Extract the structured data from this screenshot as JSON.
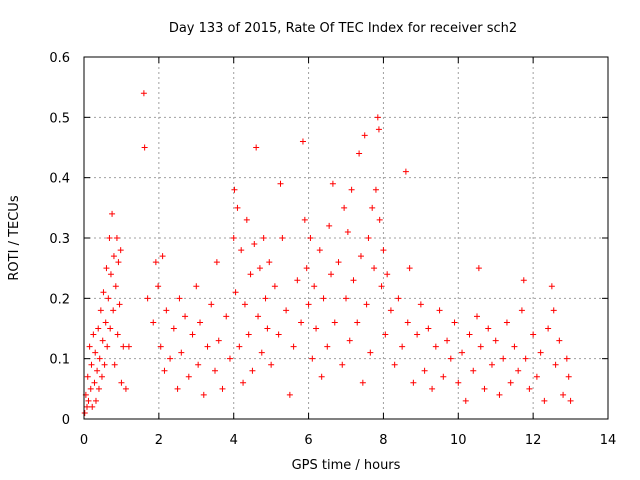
{
  "chart_data": {
    "type": "scatter",
    "title": "Day 133 of 2015, Rate Of TEC Index for receiver sch2",
    "xlabel": "GPS time / hours",
    "ylabel": "ROTI / TECUs",
    "xlim": [
      0,
      14
    ],
    "ylim": [
      0,
      0.6
    ],
    "xticks": [
      0,
      2,
      4,
      6,
      8,
      10,
      12,
      14
    ],
    "yticks": [
      0,
      0.1,
      0.2,
      0.3,
      0.4,
      0.5,
      0.6
    ],
    "xtick_labels": [
      "0",
      "2",
      "4",
      "6",
      "8",
      "10",
      "12",
      "14"
    ],
    "ytick_labels": [
      "0",
      "0.1",
      "0.2",
      "0.3",
      "0.4",
      "0.5",
      "0.6"
    ],
    "grid": true,
    "marker": "plus",
    "marker_color": "#ff0000",
    "points": [
      [
        0.02,
        0.01
      ],
      [
        0.05,
        0.04
      ],
      [
        0.08,
        0.02
      ],
      [
        0.1,
        0.07
      ],
      [
        0.12,
        0.03
      ],
      [
        0.15,
        0.12
      ],
      [
        0.18,
        0.05
      ],
      [
        0.2,
        0.09
      ],
      [
        0.22,
        0.02
      ],
      [
        0.25,
        0.14
      ],
      [
        0.28,
        0.06
      ],
      [
        0.3,
        0.11
      ],
      [
        0.32,
        0.03
      ],
      [
        0.35,
        0.08
      ],
      [
        0.38,
        0.15
      ],
      [
        0.4,
        0.05
      ],
      [
        0.42,
        0.1
      ],
      [
        0.45,
        0.18
      ],
      [
        0.48,
        0.07
      ],
      [
        0.5,
        0.13
      ],
      [
        0.52,
        0.21
      ],
      [
        0.55,
        0.09
      ],
      [
        0.58,
        0.16
      ],
      [
        0.6,
        0.25
      ],
      [
        0.62,
        0.12
      ],
      [
        0.65,
        0.2
      ],
      [
        0.68,
        0.3
      ],
      [
        0.7,
        0.15
      ],
      [
        0.72,
        0.24
      ],
      [
        0.75,
        0.34
      ],
      [
        0.78,
        0.18
      ],
      [
        0.8,
        0.27
      ],
      [
        0.82,
        0.09
      ],
      [
        0.85,
        0.22
      ],
      [
        0.88,
        0.3
      ],
      [
        0.9,
        0.14
      ],
      [
        0.92,
        0.26
      ],
      [
        0.95,
        0.19
      ],
      [
        0.98,
        0.28
      ],
      [
        1.0,
        0.06
      ],
      [
        1.05,
        0.12
      ],
      [
        1.12,
        0.05
      ],
      [
        1.2,
        0.12
      ],
      [
        1.6,
        0.54
      ],
      [
        1.62,
        0.45
      ],
      [
        1.7,
        0.2
      ],
      [
        1.85,
        0.16
      ],
      [
        1.92,
        0.26
      ],
      [
        1.98,
        0.22
      ],
      [
        2.05,
        0.12
      ],
      [
        2.1,
        0.27
      ],
      [
        2.15,
        0.08
      ],
      [
        2.2,
        0.18
      ],
      [
        2.3,
        0.1
      ],
      [
        2.4,
        0.15
      ],
      [
        2.5,
        0.05
      ],
      [
        2.55,
        0.2
      ],
      [
        2.6,
        0.11
      ],
      [
        2.7,
        0.17
      ],
      [
        2.8,
        0.07
      ],
      [
        2.9,
        0.14
      ],
      [
        3.0,
        0.22
      ],
      [
        3.05,
        0.09
      ],
      [
        3.1,
        0.16
      ],
      [
        3.2,
        0.04
      ],
      [
        3.3,
        0.12
      ],
      [
        3.4,
        0.19
      ],
      [
        3.5,
        0.08
      ],
      [
        3.55,
        0.26
      ],
      [
        3.6,
        0.13
      ],
      [
        3.7,
        0.05
      ],
      [
        3.8,
        0.17
      ],
      [
        3.9,
        0.1
      ],
      [
        4.0,
        0.3
      ],
      [
        4.02,
        0.38
      ],
      [
        4.05,
        0.21
      ],
      [
        4.1,
        0.35
      ],
      [
        4.15,
        0.12
      ],
      [
        4.2,
        0.28
      ],
      [
        4.25,
        0.06
      ],
      [
        4.3,
        0.19
      ],
      [
        4.35,
        0.33
      ],
      [
        4.4,
        0.14
      ],
      [
        4.45,
        0.24
      ],
      [
        4.5,
        0.08
      ],
      [
        4.55,
        0.29
      ],
      [
        4.6,
        0.45
      ],
      [
        4.65,
        0.17
      ],
      [
        4.7,
        0.25
      ],
      [
        4.75,
        0.11
      ],
      [
        4.8,
        0.3
      ],
      [
        4.85,
        0.2
      ],
      [
        4.9,
        0.15
      ],
      [
        4.95,
        0.26
      ],
      [
        5.0,
        0.09
      ],
      [
        5.1,
        0.22
      ],
      [
        5.2,
        0.14
      ],
      [
        5.25,
        0.39
      ],
      [
        5.3,
        0.3
      ],
      [
        5.4,
        0.18
      ],
      [
        5.5,
        0.04
      ],
      [
        5.6,
        0.12
      ],
      [
        5.7,
        0.23
      ],
      [
        5.8,
        0.16
      ],
      [
        5.85,
        0.46
      ],
      [
        5.9,
        0.33
      ],
      [
        5.95,
        0.25
      ],
      [
        6.0,
        0.19
      ],
      [
        6.05,
        0.3
      ],
      [
        6.1,
        0.1
      ],
      [
        6.15,
        0.22
      ],
      [
        6.2,
        0.15
      ],
      [
        6.3,
        0.28
      ],
      [
        6.35,
        0.07
      ],
      [
        6.4,
        0.2
      ],
      [
        6.5,
        0.12
      ],
      [
        6.55,
        0.32
      ],
      [
        6.6,
        0.24
      ],
      [
        6.65,
        0.39
      ],
      [
        6.7,
        0.16
      ],
      [
        6.8,
        0.26
      ],
      [
        6.9,
        0.09
      ],
      [
        6.95,
        0.35
      ],
      [
        7.0,
        0.2
      ],
      [
        7.05,
        0.31
      ],
      [
        7.1,
        0.13
      ],
      [
        7.15,
        0.38
      ],
      [
        7.2,
        0.23
      ],
      [
        7.3,
        0.16
      ],
      [
        7.35,
        0.44
      ],
      [
        7.4,
        0.27
      ],
      [
        7.45,
        0.06
      ],
      [
        7.5,
        0.47
      ],
      [
        7.55,
        0.19
      ],
      [
        7.6,
        0.3
      ],
      [
        7.65,
        0.11
      ],
      [
        7.7,
        0.35
      ],
      [
        7.75,
        0.25
      ],
      [
        7.8,
        0.38
      ],
      [
        7.85,
        0.5
      ],
      [
        7.88,
        0.48
      ],
      [
        7.9,
        0.33
      ],
      [
        7.95,
        0.22
      ],
      [
        8.0,
        0.28
      ],
      [
        8.05,
        0.14
      ],
      [
        8.1,
        0.24
      ],
      [
        8.2,
        0.18
      ],
      [
        8.3,
        0.09
      ],
      [
        8.4,
        0.2
      ],
      [
        8.5,
        0.12
      ],
      [
        8.6,
        0.41
      ],
      [
        8.65,
        0.16
      ],
      [
        8.7,
        0.25
      ],
      [
        8.8,
        0.06
      ],
      [
        8.9,
        0.14
      ],
      [
        9.0,
        0.19
      ],
      [
        9.1,
        0.08
      ],
      [
        9.2,
        0.15
      ],
      [
        9.3,
        0.05
      ],
      [
        9.4,
        0.12
      ],
      [
        9.5,
        0.18
      ],
      [
        9.6,
        0.07
      ],
      [
        9.7,
        0.13
      ],
      [
        9.8,
        0.1
      ],
      [
        9.9,
        0.16
      ],
      [
        10.0,
        0.06
      ],
      [
        10.1,
        0.11
      ],
      [
        10.2,
        0.03
      ],
      [
        10.3,
        0.14
      ],
      [
        10.4,
        0.08
      ],
      [
        10.5,
        0.17
      ],
      [
        10.55,
        0.25
      ],
      [
        10.6,
        0.12
      ],
      [
        10.7,
        0.05
      ],
      [
        10.8,
        0.15
      ],
      [
        10.9,
        0.09
      ],
      [
        11.0,
        0.13
      ],
      [
        11.1,
        0.04
      ],
      [
        11.2,
        0.1
      ],
      [
        11.3,
        0.16
      ],
      [
        11.4,
        0.06
      ],
      [
        11.5,
        0.12
      ],
      [
        11.6,
        0.08
      ],
      [
        11.7,
        0.18
      ],
      [
        11.75,
        0.23
      ],
      [
        11.8,
        0.1
      ],
      [
        11.9,
        0.05
      ],
      [
        12.0,
        0.14
      ],
      [
        12.1,
        0.07
      ],
      [
        12.2,
        0.11
      ],
      [
        12.3,
        0.03
      ],
      [
        12.4,
        0.15
      ],
      [
        12.5,
        0.22
      ],
      [
        12.55,
        0.18
      ],
      [
        12.6,
        0.09
      ],
      [
        12.7,
        0.13
      ],
      [
        12.8,
        0.04
      ],
      [
        12.9,
        0.1
      ],
      [
        12.95,
        0.07
      ],
      [
        13.0,
        0.03
      ]
    ]
  }
}
